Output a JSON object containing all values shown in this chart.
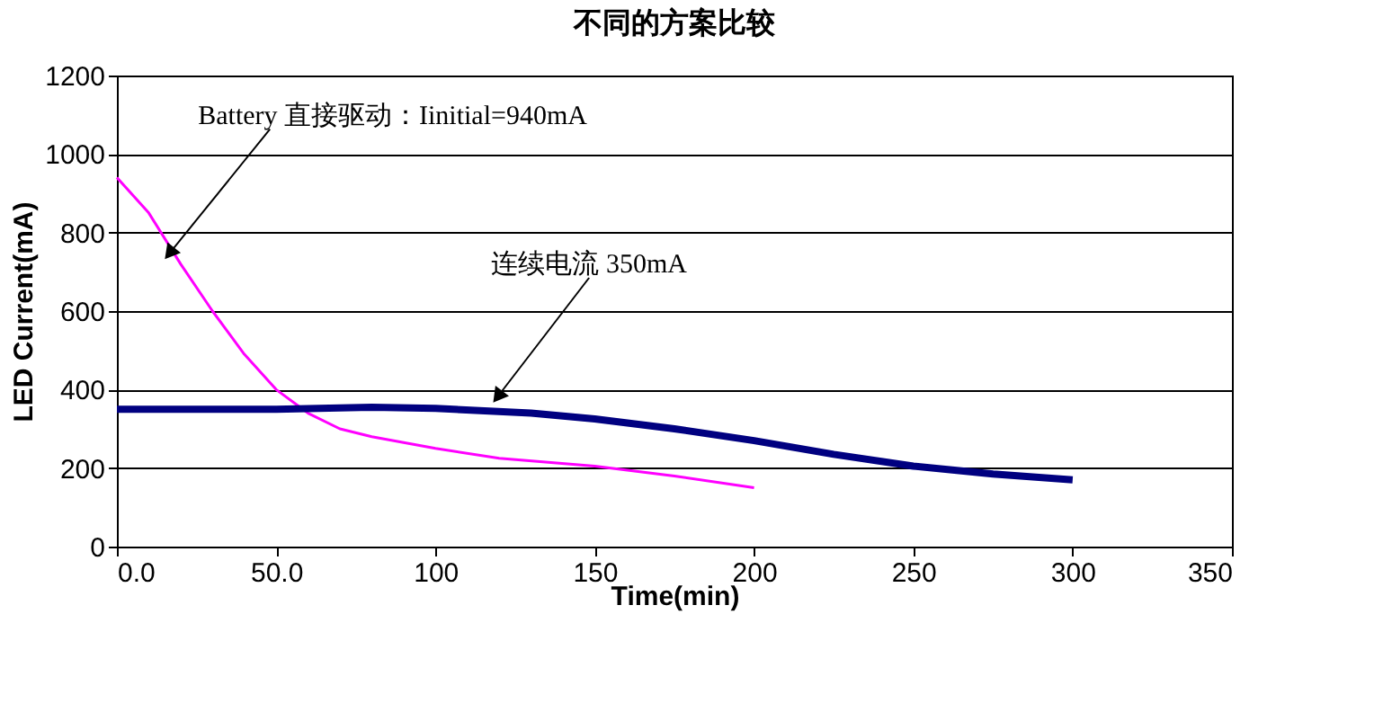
{
  "chart_data": {
    "type": "line",
    "title": "不同的方案比较",
    "xlabel": "Time(min)",
    "ylabel": "LED Current(mA)",
    "xlim": [
      0,
      350
    ],
    "xticks": [
      {
        "value": 0,
        "label": "0.0"
      },
      {
        "value": 50,
        "label": "50.0"
      },
      100,
      150,
      200,
      250,
      300,
      350
    ],
    "ylim": [
      0,
      1200
    ],
    "yticks": [
      0,
      200,
      400,
      600,
      800,
      1000,
      1200
    ],
    "grid": "y",
    "marker": "none",
    "line_style": "solid",
    "series": [
      {
        "color": "#ff00ff",
        "x": [
          0,
          10,
          20,
          30,
          40,
          50,
          60,
          70,
          80,
          90,
          100,
          120,
          150,
          175,
          200
        ],
        "values": [
          940,
          850,
          720,
          600,
          490,
          400,
          340,
          300,
          280,
          265,
          250,
          225,
          205,
          180,
          150
        ]
      },
      {
        "color": "#000080",
        "x": [
          0,
          50,
          80,
          100,
          130,
          150,
          175,
          200,
          225,
          250,
          275,
          300
        ],
        "values": [
          350,
          350,
          355,
          352,
          340,
          325,
          300,
          270,
          235,
          205,
          185,
          170
        ]
      }
    ],
    "annotations": [
      {
        "text": "Battery 直接驱动：Iinitial=940mA",
        "x": 17,
        "y": 752
      },
      {
        "text": "连续电流 350mA",
        "x": 120,
        "y": 387
      }
    ]
  }
}
